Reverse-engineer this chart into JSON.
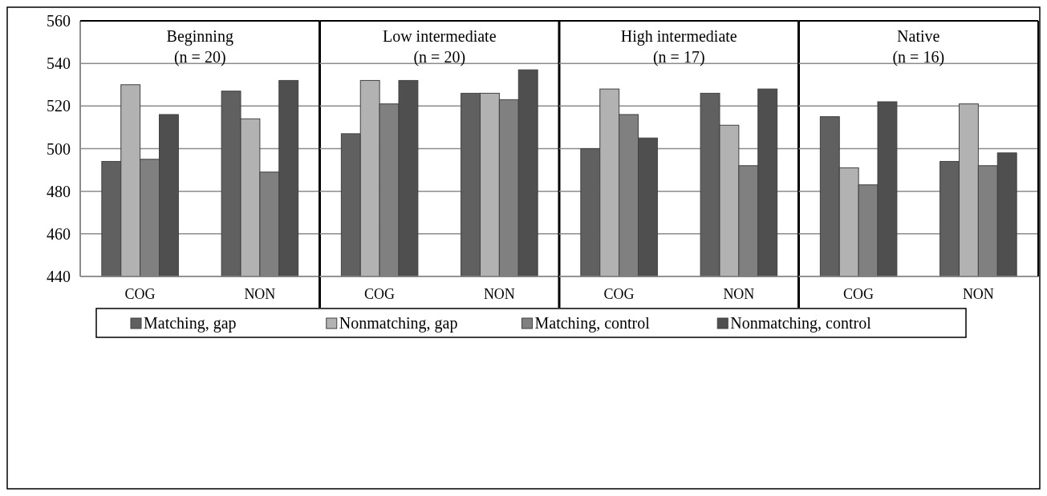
{
  "chart_data": [
    {
      "type": "bar",
      "title": "Beginning",
      "subtitle": "(n = 20)",
      "categories": [
        "COG",
        "NON"
      ],
      "ylim": [
        440,
        560
      ],
      "yticks": [
        440,
        460,
        480,
        500,
        520,
        540,
        560
      ],
      "grid": "y",
      "legend": "bottom",
      "series": [
        {
          "name": "Matching, gap",
          "color": "#606060",
          "values": [
            494,
            527
          ]
        },
        {
          "name": "Nonmatching, gap",
          "color": "#b2b2b2",
          "values": [
            530,
            514
          ]
        },
        {
          "name": "Matching, control",
          "color": "#808080",
          "values": [
            495,
            489
          ]
        },
        {
          "name": "Nonmatching, control",
          "color": "#4f4f4f",
          "values": [
            516,
            532
          ]
        }
      ]
    },
    {
      "type": "bar",
      "title": "Low intermediate",
      "subtitle": "(n = 20)",
      "categories": [
        "COG",
        "NON"
      ],
      "ylim": [
        440,
        560
      ],
      "yticks": [
        440,
        460,
        480,
        500,
        520,
        540,
        560
      ],
      "grid": "y",
      "tick_labels": "x",
      "series": [
        {
          "color": "#606060",
          "values": [
            507,
            526
          ]
        },
        {
          "color": "#b2b2b2",
          "values": [
            532,
            526
          ]
        },
        {
          "color": "#808080",
          "values": [
            521,
            523
          ]
        },
        {
          "color": "#4f4f4f",
          "values": [
            532,
            537
          ]
        }
      ]
    },
    {
      "type": "bar",
      "title": "High intermediate",
      "subtitle": "(n = 17)",
      "categories": [
        "COG",
        "NON"
      ],
      "ylim": [
        440,
        560
      ],
      "yticks": [
        440,
        460,
        480,
        500,
        520,
        540,
        560
      ],
      "grid": "y",
      "tick_labels": "x",
      "series": [
        {
          "color": "#606060",
          "values": [
            500,
            526
          ]
        },
        {
          "color": "#b2b2b2",
          "values": [
            528,
            511
          ]
        },
        {
          "color": "#808080",
          "values": [
            516,
            492
          ]
        },
        {
          "color": "#4f4f4f",
          "values": [
            505,
            528
          ]
        }
      ]
    },
    {
      "type": "bar",
      "title": "Native",
      "subtitle": "(n = 16)",
      "categories": [
        "COG",
        "NON"
      ],
      "ylim": [
        440,
        560
      ],
      "yticks": [
        440,
        460,
        480,
        500,
        520,
        540,
        560
      ],
      "grid": "y",
      "tick_labels": "x",
      "series": [
        {
          "color": "#606060",
          "values": [
            515,
            494
          ]
        },
        {
          "color": "#b2b2b2",
          "values": [
            491,
            521
          ]
        },
        {
          "color": "#808080",
          "values": [
            483,
            492
          ]
        },
        {
          "color": "#4f4f4f",
          "values": [
            522,
            498
          ]
        }
      ]
    }
  ]
}
